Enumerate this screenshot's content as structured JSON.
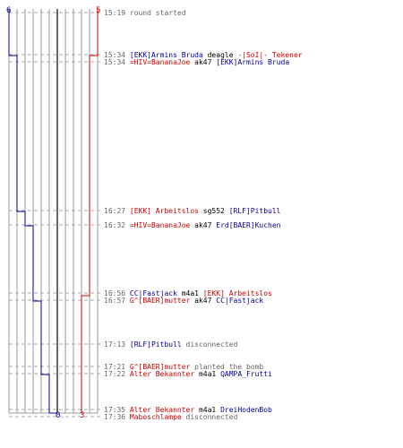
{
  "colors": {
    "ct": "#000099",
    "t": "#cc0000",
    "grid": "#999999",
    "mid": "#666666",
    "text": "#666666"
  },
  "scores": {
    "ct_start": "6",
    "t_start": "5",
    "ct_end": "0",
    "t_end": "3"
  },
  "events": [
    {
      "time": "15:19",
      "parts": [
        {
          "text": "round started",
          "c": "grey"
        }
      ]
    },
    {
      "time": "15:34",
      "parts": [
        {
          "text": "[EKK]Armins Bruda",
          "c": "blue"
        },
        {
          "text": " deagle ",
          "c": "black"
        },
        {
          "text": "-|SoI|- Tekener",
          "c": "red"
        }
      ]
    },
    {
      "time": "15:34",
      "parts": [
        {
          "text": "=HIV=BananaJoe",
          "c": "red"
        },
        {
          "text": " ak47 ",
          "c": "black"
        },
        {
          "text": "[EKK]Armins Bruda",
          "c": "blue"
        }
      ]
    },
    {
      "time": "16:27",
      "parts": [
        {
          "text": "[EKK] Arbeitslos",
          "c": "red"
        },
        {
          "text": " sg552 ",
          "c": "black"
        },
        {
          "text": "[RLF]Pitbull",
          "c": "blue"
        }
      ]
    },
    {
      "time": "16:32",
      "parts": [
        {
          "text": "=HIV=BananaJoe",
          "c": "red"
        },
        {
          "text": " ak47 ",
          "c": "black"
        },
        {
          "text": "Erd[BAER]Kuchen",
          "c": "blue"
        }
      ]
    },
    {
      "time": "16:56",
      "parts": [
        {
          "text": "CC|Fastjack",
          "c": "blue"
        },
        {
          "text": " m4a1 ",
          "c": "black"
        },
        {
          "text": "[EKK] Arbeitslos",
          "c": "red"
        }
      ]
    },
    {
      "time": "16:57",
      "parts": [
        {
          "text": "G^[BAER]mutter",
          "c": "red"
        },
        {
          "text": " ak47 ",
          "c": "black"
        },
        {
          "text": "CC|Fastjack",
          "c": "blue"
        }
      ]
    },
    {
      "time": "17:13",
      "parts": [
        {
          "text": "[RLF]Pitbull",
          "c": "blue"
        },
        {
          "text": " disconnected",
          "c": "grey"
        }
      ]
    },
    {
      "time": "17:21",
      "parts": [
        {
          "text": "G^[BAER]mutter",
          "c": "red"
        },
        {
          "text": " planted the bomb",
          "c": "grey"
        }
      ]
    },
    {
      "time": "17:22",
      "parts": [
        {
          "text": "Alter Bekannter",
          "c": "red"
        },
        {
          "text": " m4a1 ",
          "c": "black"
        },
        {
          "text": "QAMPA_Frutti",
          "c": "blue"
        }
      ]
    },
    {
      "time": "17:35",
      "parts": [
        {
          "text": "Alter Bekannter",
          "c": "red"
        },
        {
          "text": " m4a1 ",
          "c": "black"
        },
        {
          "text": "DreiHodenBob",
          "c": "blue"
        }
      ]
    },
    {
      "time": "17:36",
      "parts": [
        {
          "text": "Maboschlampe",
          "c": "red"
        },
        {
          "text": " disconnected",
          "c": "grey"
        }
      ]
    }
  ]
}
